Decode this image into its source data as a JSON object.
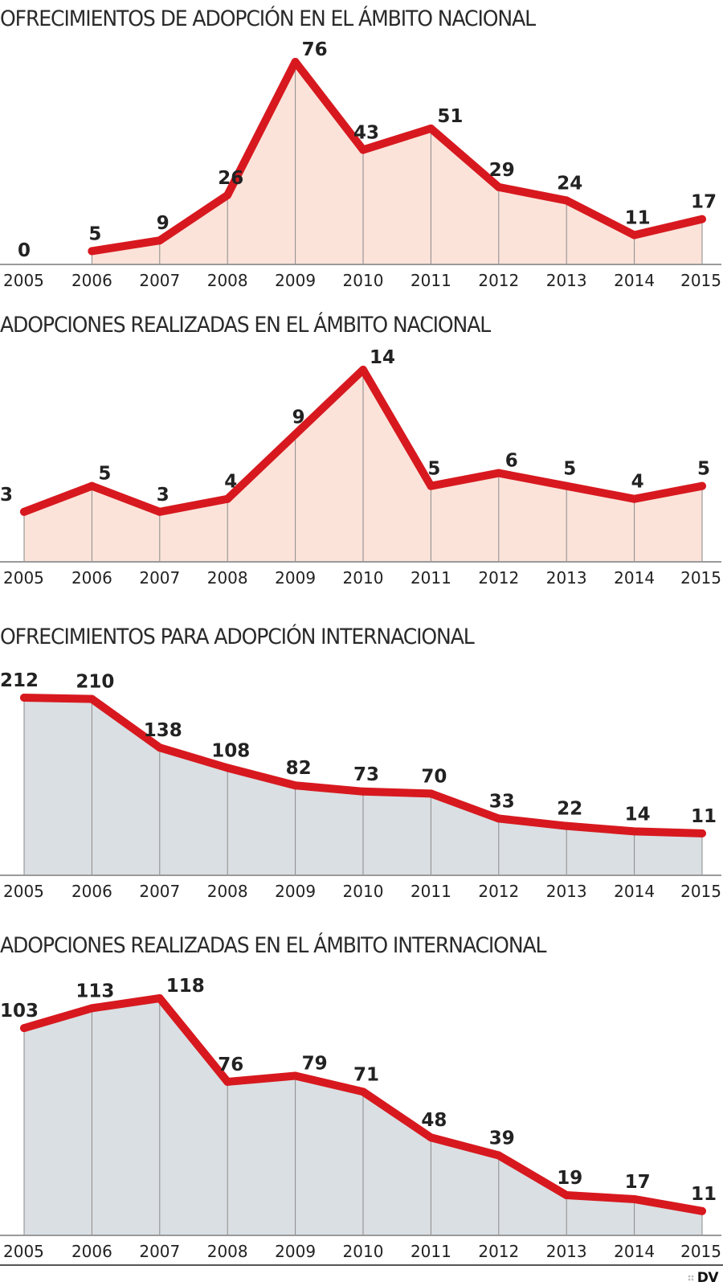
{
  "colors": {
    "line": "#d7191f",
    "fill_nacional": "#fbe3da",
    "fill_internacional": "#dadfe3",
    "grid": "#8a8a8a",
    "axis": "#9a9a9a"
  },
  "logo": {
    "text": "DV"
  },
  "chart_data": [
    {
      "type": "area",
      "title": "OFRECIMIENTOS DE ADOPCIÓN EN EL ÁMBITO NACIONAL",
      "categories": [
        "2005",
        "2006",
        "2007",
        "2008",
        "2009",
        "2010",
        "2011",
        "2012",
        "2013",
        "2014",
        "2015"
      ],
      "values": [
        0,
        5,
        9,
        26,
        76,
        43,
        51,
        29,
        24,
        11,
        17
      ],
      "line_starts_at_index": 1,
      "value_labels": [
        "0",
        "5",
        "9",
        "26",
        "76",
        "43",
        "51",
        "29",
        "24",
        "11",
        "17"
      ],
      "ylim": [
        0,
        76
      ],
      "fill": "nacional",
      "xlabel": "",
      "ylabel": "",
      "grid": false,
      "legend": "none"
    },
    {
      "type": "area",
      "title": "ADOPCIONES REALIZADAS EN EL ÁMBITO NACIONAL",
      "categories": [
        "2005",
        "2006",
        "2007",
        "2008",
        "2009",
        "2010",
        "2011",
        "2012",
        "2013",
        "2014",
        "2015"
      ],
      "values": [
        3,
        5,
        3,
        4,
        9,
        14,
        5,
        6,
        5,
        4,
        5
      ],
      "line_starts_at_index": 0,
      "value_labels": [
        "3",
        "5",
        "3",
        "4",
        "9",
        "14",
        "5",
        "6",
        "5",
        "4",
        "5"
      ],
      "ylim": [
        -0.87,
        14
      ],
      "fill": "nacional",
      "xlabel": "",
      "ylabel": "",
      "grid": false,
      "legend": "none"
    },
    {
      "type": "area",
      "title": "OFRECIMIENTOS PARA ADOPCIÓN INTERNACIONAL",
      "categories": [
        "2005",
        "2006",
        "2007",
        "2008",
        "2009",
        "2010",
        "2011",
        "2012",
        "2013",
        "2014",
        "2015"
      ],
      "values": [
        212,
        210,
        138,
        108,
        82,
        73,
        70,
        33,
        22,
        14,
        11
      ],
      "line_starts_at_index": 0,
      "value_labels": [
        "212",
        "210",
        "138",
        "108",
        "82",
        "73",
        "70",
        "33",
        "22",
        "14",
        "11"
      ],
      "ylim": [
        -51,
        212
      ],
      "fill": "internacional",
      "xlabel": "",
      "ylabel": "",
      "grid": false,
      "legend": "none"
    },
    {
      "type": "area",
      "title": "ADOPCIONES REALIZADAS EN EL ÁMBITO INTERNACIONAL",
      "categories": [
        "2005",
        "2006",
        "2007",
        "2008",
        "2009",
        "2010",
        "2011",
        "2012",
        "2013",
        "2014",
        "2015"
      ],
      "values": [
        103,
        113,
        118,
        76,
        79,
        71,
        48,
        39,
        19,
        17,
        11
      ],
      "line_starts_at_index": 0,
      "value_labels": [
        "103",
        "113",
        "118",
        "76",
        "79",
        "71",
        "48",
        "39",
        "19",
        "17",
        "11"
      ],
      "ylim": [
        -1.2,
        118
      ],
      "fill": "internacional",
      "xlabel": "",
      "ylabel": "",
      "grid": false,
      "legend": "none"
    }
  ]
}
